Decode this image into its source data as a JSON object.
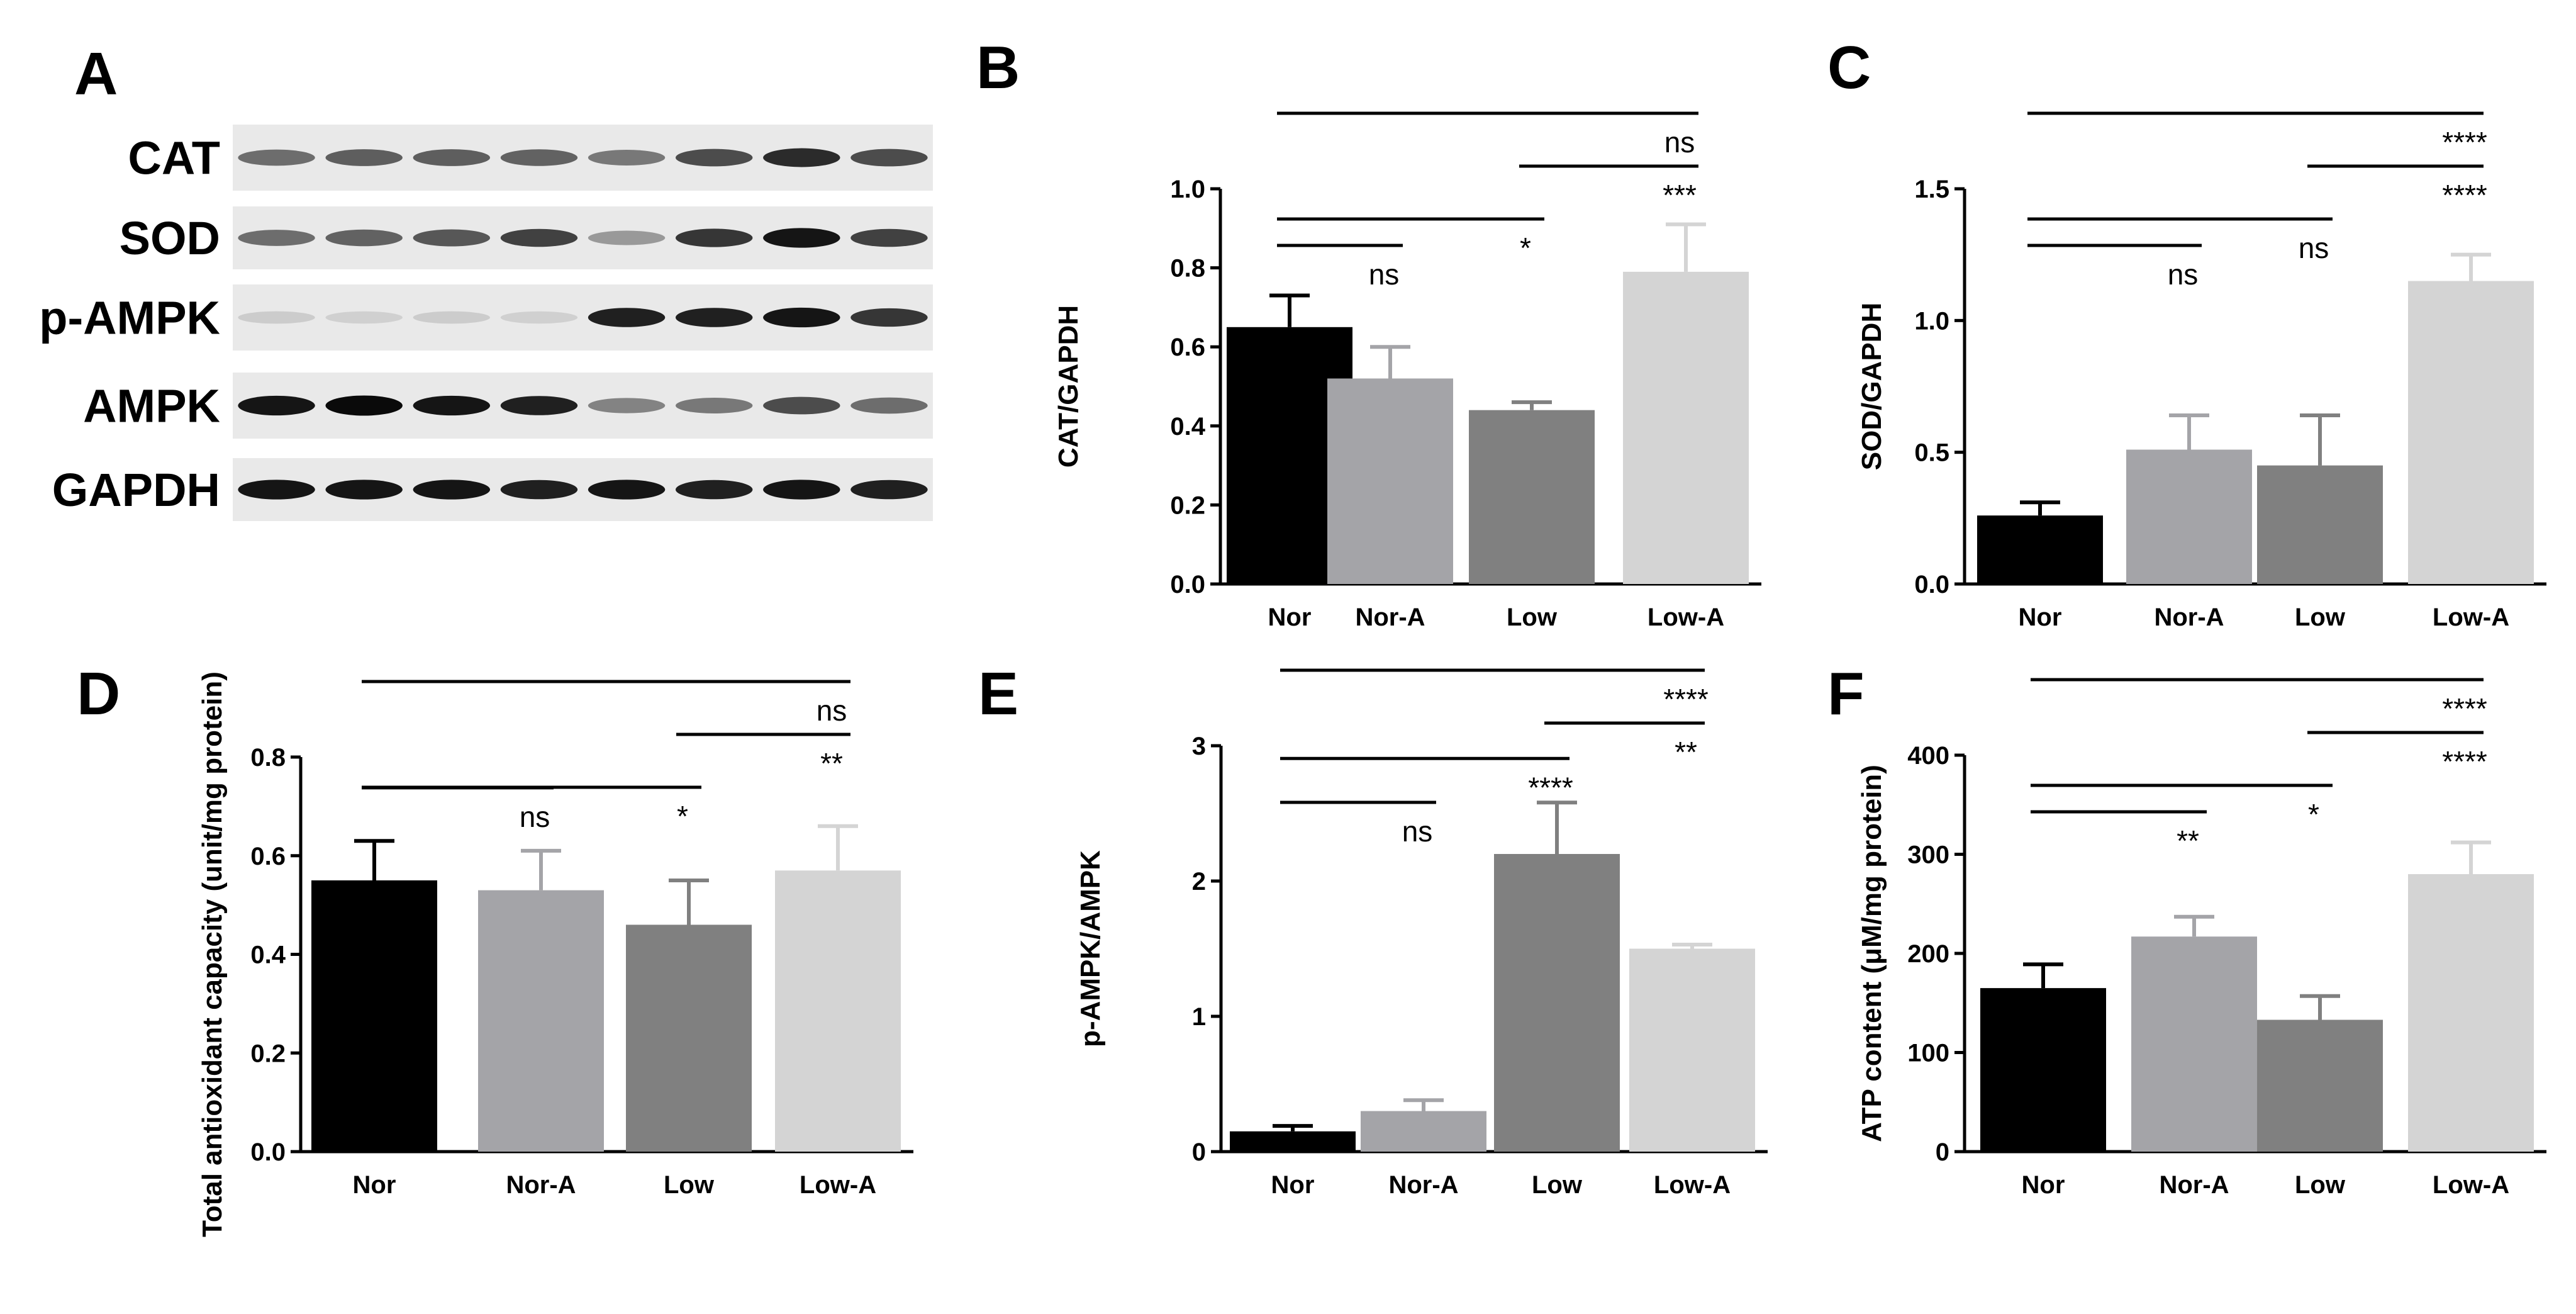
{
  "blot": {
    "panel_label": "A",
    "rows": [
      {
        "label": "CAT",
        "band_darkness": [
          0.55,
          0.62,
          0.62,
          0.6,
          0.5,
          0.7,
          0.85,
          0.7
        ]
      },
      {
        "label": "SOD",
        "band_darkness": [
          0.55,
          0.6,
          0.65,
          0.75,
          0.35,
          0.8,
          0.95,
          0.75
        ]
      },
      {
        "label": "p-AMPK",
        "band_darkness": [
          0.12,
          0.1,
          0.12,
          0.1,
          0.9,
          0.9,
          0.95,
          0.8
        ]
      },
      {
        "label": "AMPK",
        "band_darkness": [
          0.95,
          1.0,
          0.95,
          0.9,
          0.45,
          0.5,
          0.7,
          0.55
        ]
      },
      {
        "label": "GAPDH",
        "band_darkness": [
          0.95,
          0.95,
          0.95,
          0.9,
          0.95,
          0.9,
          0.95,
          0.9
        ]
      }
    ]
  },
  "chart_data": [
    {
      "panel_label": "B",
      "type": "bar",
      "categories": [
        "Nor",
        "Nor-A",
        "Low",
        "Low-A"
      ],
      "values": [
        0.65,
        0.52,
        0.44,
        0.79
      ],
      "errors": [
        0.08,
        0.08,
        0.02,
        0.12
      ],
      "colors": [
        "#000000",
        "#a4a4a8",
        "#808080",
        "#d4d4d4"
      ],
      "ylabel": "CAT/GAPDH",
      "ylim": [
        0,
        1.0
      ],
      "yticks": [
        "0.0",
        "0.2",
        "0.4",
        "0.6",
        "0.8",
        "1.0"
      ],
      "brackets": [
        {
          "from": 0,
          "to": 3,
          "label": "ns"
        },
        {
          "from": 2,
          "to": 3,
          "label": "***"
        },
        {
          "from": 0,
          "to": 2,
          "label": "*"
        },
        {
          "from": 0,
          "to": 1,
          "label": "ns"
        }
      ]
    },
    {
      "panel_label": "C",
      "type": "bar",
      "categories": [
        "Nor",
        "Nor-A",
        "Low",
        "Low-A"
      ],
      "values": [
        0.26,
        0.51,
        0.45,
        1.15
      ],
      "errors": [
        0.05,
        0.13,
        0.19,
        0.1
      ],
      "colors": [
        "#000000",
        "#a4a4a8",
        "#808080",
        "#d4d4d4"
      ],
      "ylabel": "SOD/GAPDH",
      "ylim": [
        0,
        1.5
      ],
      "yticks": [
        "0.0",
        "0.5",
        "1.0",
        "1.5"
      ],
      "brackets": [
        {
          "from": 0,
          "to": 3,
          "label": "****"
        },
        {
          "from": 2,
          "to": 3,
          "label": "****"
        },
        {
          "from": 0,
          "to": 2,
          "label": "ns"
        },
        {
          "from": 0,
          "to": 1,
          "label": "ns"
        }
      ]
    },
    {
      "panel_label": "D",
      "type": "bar",
      "categories": [
        "Nor",
        "Nor-A",
        "Low",
        "Low-A"
      ],
      "values": [
        0.55,
        0.53,
        0.46,
        0.57
      ],
      "errors": [
        0.08,
        0.08,
        0.09,
        0.09
      ],
      "colors": [
        "#000000",
        "#a4a4a8",
        "#808080",
        "#d4d4d4"
      ],
      "ylabel": "Total antioxidant capacity (unit/mg protein)",
      "ylim": [
        0,
        0.8
      ],
      "yticks": [
        "0.0",
        "0.2",
        "0.4",
        "0.6",
        "0.8"
      ],
      "brackets": [
        {
          "from": 0,
          "to": 3,
          "label": "ns"
        },
        {
          "from": 2,
          "to": 3,
          "label": "**"
        },
        {
          "from": 0,
          "to": 2,
          "label": "*"
        },
        {
          "from": 0,
          "to": 1,
          "label": "ns"
        }
      ]
    },
    {
      "panel_label": "E",
      "type": "bar",
      "categories": [
        "Nor",
        "Nor-A",
        "Low",
        "Low-A"
      ],
      "values": [
        0.15,
        0.3,
        2.2,
        1.5
      ],
      "errors": [
        0.04,
        0.08,
        0.38,
        0.03
      ],
      "colors": [
        "#000000",
        "#a4a4a8",
        "#808080",
        "#d4d4d4"
      ],
      "ylabel": "p-AMPK/AMPK",
      "ylim": [
        0,
        3
      ],
      "yticks": [
        "0",
        "1",
        "2",
        "3"
      ],
      "brackets": [
        {
          "from": 0,
          "to": 3,
          "label": "****"
        },
        {
          "from": 2,
          "to": 3,
          "label": "**"
        },
        {
          "from": 0,
          "to": 2,
          "label": "****"
        },
        {
          "from": 0,
          "to": 1,
          "label": "ns"
        }
      ]
    },
    {
      "panel_label": "F",
      "type": "bar",
      "categories": [
        "Nor",
        "Nor-A",
        "Low",
        "Low-A"
      ],
      "values": [
        165,
        217,
        133,
        280
      ],
      "errors": [
        24,
        20,
        24,
        32
      ],
      "colors": [
        "#000000",
        "#a4a4a8",
        "#808080",
        "#d4d4d4"
      ],
      "ylabel": "ATP content (μM/mg protein)",
      "ylim": [
        0,
        400
      ],
      "yticks": [
        "0",
        "100",
        "200",
        "300",
        "400"
      ],
      "brackets": [
        {
          "from": 0,
          "to": 3,
          "label": "****"
        },
        {
          "from": 2,
          "to": 3,
          "label": "****"
        },
        {
          "from": 0,
          "to": 2,
          "label": "*"
        },
        {
          "from": 0,
          "to": 1,
          "label": "**"
        }
      ]
    }
  ]
}
